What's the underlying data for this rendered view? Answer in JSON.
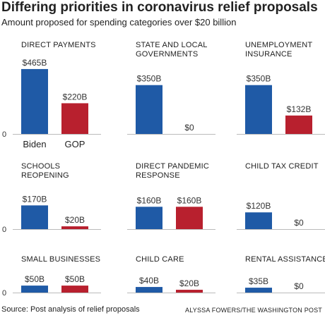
{
  "title": "Differing priorities in coronavirus relief proposals",
  "subtitle": "Amount proposed for spending categories over $20 billion",
  "source": "Source: Post analysis of relief proposals",
  "credit": "ALYSSA FOWERS/THE WASHINGTON POST",
  "chart_data": [
    {
      "type": "bar",
      "title": "DIRECT PAYMENTS",
      "categories": [
        "Biden",
        "GOP"
      ],
      "values": [
        465,
        220
      ],
      "value_labels": [
        "$465B",
        "$220B"
      ],
      "colors": [
        "#1f5aa6",
        "#b8202e"
      ],
      "ylim": [
        0,
        500
      ],
      "yticks": [
        0
      ]
    },
    {
      "type": "bar",
      "title": "STATE AND LOCAL GOVERNMENTS",
      "categories": [
        null,
        null
      ],
      "values": [
        350,
        0
      ],
      "value_labels": [
        "$350B",
        "$0"
      ],
      "colors": [
        "#1f5aa6",
        "#b8202e"
      ],
      "ylim": [
        0,
        500
      ]
    },
    {
      "type": "bar",
      "title": "UNEMPLOYMENT INSURANCE",
      "categories": [
        null,
        null
      ],
      "values": [
        350,
        132
      ],
      "value_labels": [
        "$350B",
        "$132B"
      ],
      "colors": [
        "#1f5aa6",
        "#b8202e"
      ],
      "ylim": [
        0,
        500
      ]
    },
    {
      "type": "bar",
      "title": "SCHOOLS REOPENING",
      "categories": [
        null,
        null
      ],
      "values": [
        170,
        20
      ],
      "value_labels": [
        "$170B",
        "$20B"
      ],
      "colors": [
        "#1f5aa6",
        "#b8202e"
      ],
      "ylim": [
        0,
        300
      ],
      "yticks": [
        0
      ]
    },
    {
      "type": "bar",
      "title": "DIRECT PANDEMIC RESPONSE",
      "categories": [
        null,
        null
      ],
      "values": [
        160,
        160
      ],
      "value_labels": [
        "$160B",
        "$160B"
      ],
      "colors": [
        "#1f5aa6",
        "#b8202e"
      ],
      "ylim": [
        0,
        300
      ]
    },
    {
      "type": "bar",
      "title": "CHILD TAX CREDIT",
      "categories": [
        null,
        null
      ],
      "values": [
        120,
        0
      ],
      "value_labels": [
        "$120B",
        "$0"
      ],
      "colors": [
        "#1f5aa6",
        "#b8202e"
      ],
      "ylim": [
        0,
        300
      ]
    },
    {
      "type": "bar",
      "title": "SMALL BUSINESSES",
      "categories": [
        null,
        null
      ],
      "values": [
        50,
        50
      ],
      "value_labels": [
        "$50B",
        "$50B"
      ],
      "colors": [
        "#1f5aa6",
        "#b8202e"
      ],
      "ylim": [
        0,
        150
      ],
      "yticks": [
        0
      ]
    },
    {
      "type": "bar",
      "title": "CHILD CARE",
      "categories": [
        null,
        null
      ],
      "values": [
        40,
        20
      ],
      "value_labels": [
        "$40B",
        "$20B"
      ],
      "colors": [
        "#1f5aa6",
        "#b8202e"
      ],
      "ylim": [
        0,
        150
      ]
    },
    {
      "type": "bar",
      "title": "RENTAL ASSISTANCE",
      "categories": [
        null,
        null
      ],
      "values": [
        35,
        0
      ],
      "value_labels": [
        "$35B",
        "$0"
      ],
      "colors": [
        "#1f5aa6",
        "#b8202e"
      ],
      "ylim": [
        0,
        150
      ]
    }
  ]
}
